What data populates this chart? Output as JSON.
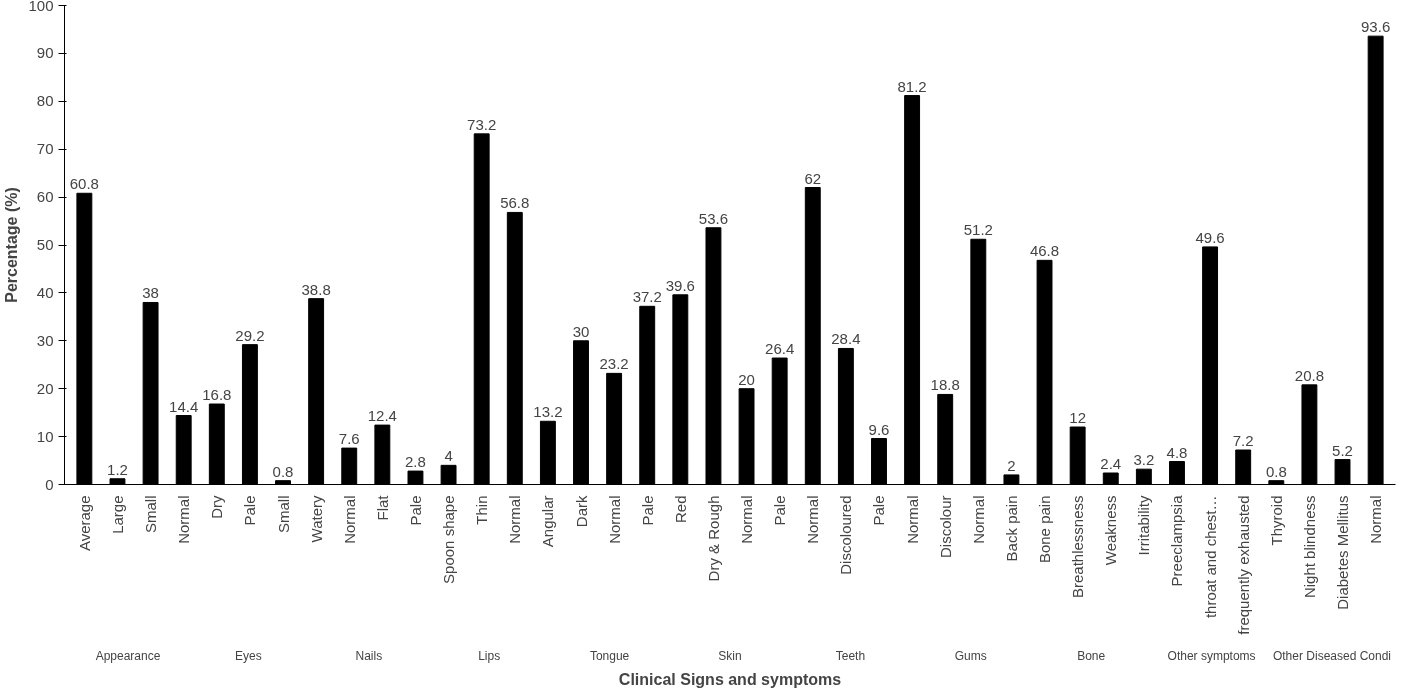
{
  "chart_data": {
    "type": "bar",
    "xlabel": "Clinical Signs and symptoms",
    "ylabel": "Percentage (%)",
    "categories": [
      "Average",
      "Large",
      "Small",
      "Normal",
      "Dry",
      "Pale",
      "Small",
      "Watery",
      "Normal",
      "Flat",
      "Pale",
      "Spoon shape",
      "Thin",
      "Normal",
      "Angular",
      "Dark",
      "Normal",
      "Pale",
      "Red",
      "Dry & Rough",
      "Normal",
      "Pale",
      "Normal",
      "Discoloured",
      "Pale",
      "Normal",
      "Discolour",
      "Normal",
      "Back pain",
      "Bone pain",
      "Breathlessness",
      "Weakness",
      "Irritability",
      "Preeclampsia",
      "throat and chest…",
      "frequently exhausted",
      "Thyroid",
      "Night blindness",
      "Diabetes Mellitus",
      "Normal"
    ],
    "values": [
      60.8,
      1.2,
      38,
      14.4,
      16.8,
      29.2,
      0.8,
      38.8,
      7.6,
      12.4,
      2.8,
      4,
      73.2,
      56.8,
      13.2,
      30,
      23.2,
      37.2,
      39.6,
      53.6,
      20,
      26.4,
      62,
      28.4,
      9.6,
      81.2,
      18.8,
      51.2,
      2,
      46.8,
      12,
      2.4,
      3.2,
      4.8,
      49.6,
      7.2,
      0.8,
      20.8,
      5.2,
      93.6
    ],
    "color": "#000000",
    "ylim": [
      0,
      100
    ],
    "yticks": [
      0,
      10,
      20,
      30,
      40,
      50,
      60,
      70,
      80,
      90,
      100
    ],
    "data_labels": true,
    "annotations": [
      "Appearance",
      "Eyes",
      "Nails",
      "Lips",
      "Tongue",
      "Skin",
      "Teeth",
      "Gums",
      "Bone",
      "Other symptoms",
      "Other Diseased Condi"
    ]
  }
}
